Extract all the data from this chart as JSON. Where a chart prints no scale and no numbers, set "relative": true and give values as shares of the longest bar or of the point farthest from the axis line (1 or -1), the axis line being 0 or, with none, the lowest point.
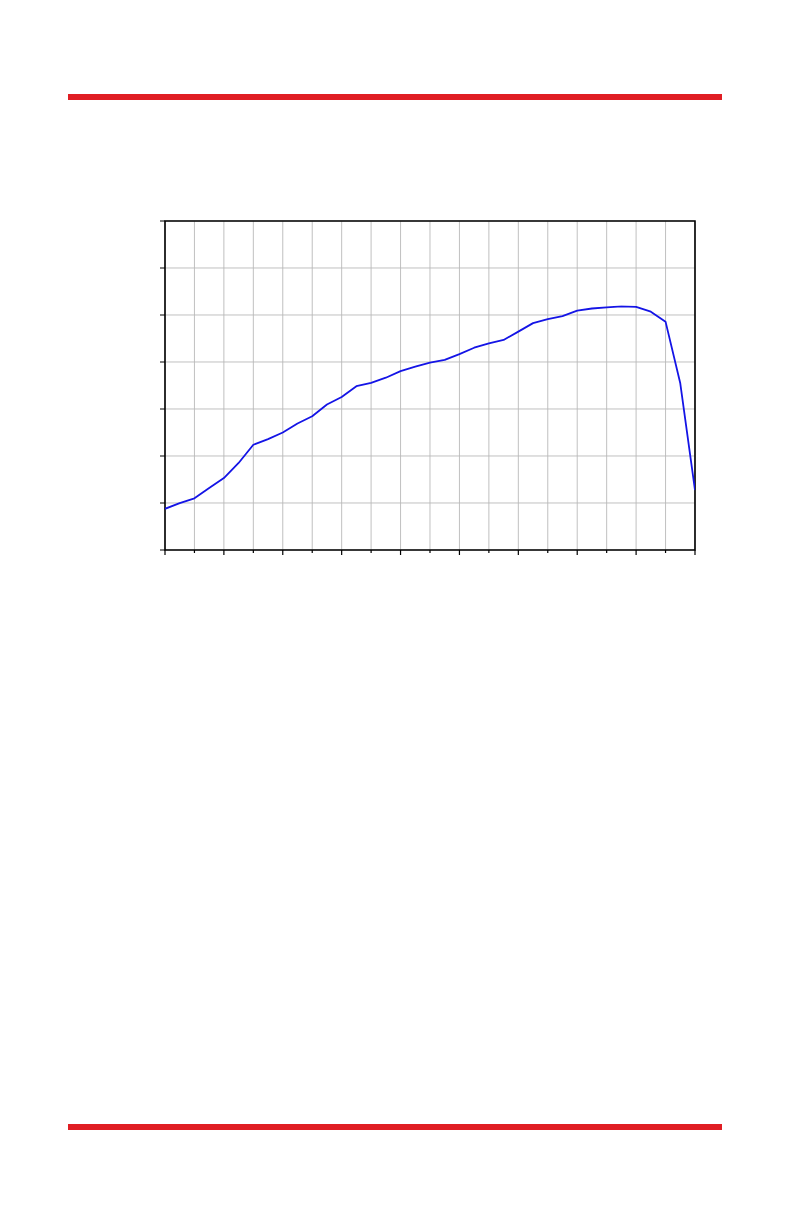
{
  "chart_data": {
    "type": "line",
    "relative": true,
    "grid": true,
    "line_style": "solid",
    "categories": [
      null,
      null,
      null,
      null,
      null,
      null,
      null,
      null,
      null,
      null,
      null,
      null,
      null,
      null,
      null,
      null,
      null,
      null,
      null,
      null,
      null,
      null,
      null,
      null,
      null,
      null,
      null,
      null,
      null,
      null,
      null,
      null,
      null,
      null,
      null,
      null,
      null
    ],
    "series": [
      {
        "color": "#1414e6",
        "values": [
          0.169,
          0.192,
          0.212,
          0.254,
          0.295,
          0.357,
          0.432,
          0.455,
          0.482,
          0.519,
          0.549,
          0.597,
          0.628,
          0.672,
          0.686,
          0.707,
          0.734,
          0.752,
          0.769,
          0.78,
          0.804,
          0.83,
          0.848,
          0.862,
          0.896,
          0.931,
          0.947,
          0.96,
          0.982,
          0.991,
          0.996,
          1,
          0.998,
          0.978,
          0.937,
          0.684,
          0.246
        ]
      }
    ]
  }
}
